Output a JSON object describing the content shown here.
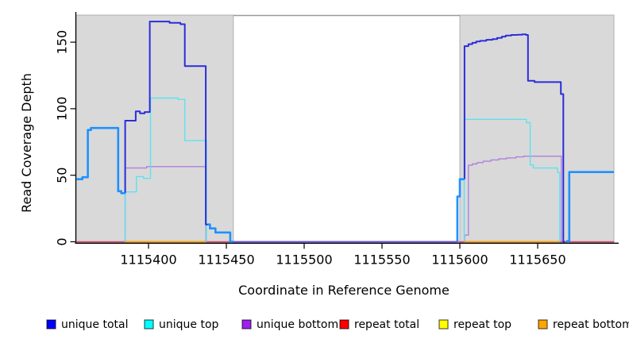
{
  "figure": {
    "background": "#ffffff",
    "plot_background_shaded": "#d9d9d9",
    "shaded_border": "#b0b0b0",
    "gap_top_line": "#9a9a9a",
    "axis_color": "#000000"
  },
  "x_axis": {
    "title": "Coordinate in Reference Genome",
    "ticks": [
      1115400,
      1115450,
      1115500,
      1115550,
      1115600,
      1115650
    ]
  },
  "y_axis": {
    "title": "Read Coverage Depth",
    "ticks": [
      0,
      50,
      100,
      150
    ]
  },
  "legend": [
    {
      "label": "unique total",
      "color": "#0000ff"
    },
    {
      "label": "unique top",
      "color": "#00ffff"
    },
    {
      "label": "unique bottom",
      "color": "#a020f0"
    },
    {
      "label": "repeat total",
      "color": "#ff0000"
    },
    {
      "label": "repeat top",
      "color": "#ffff00"
    },
    {
      "label": "repeat bottom",
      "color": "#ffa500"
    }
  ],
  "chart_data": {
    "type": "line",
    "subtype": "step-coverage",
    "xlabel": "Coordinate in Reference Genome",
    "ylabel": "Read Coverage Depth",
    "xlim": [
      1115353.5,
      1115701
    ],
    "ylim": [
      0,
      172
    ],
    "grid": false,
    "legend_position": "bottom",
    "shaded_regions": [
      {
        "name": "left-covered-region",
        "x0": 1115353.5,
        "x1": 1115454.5
      },
      {
        "name": "right-covered-region",
        "x0": 1115600.0,
        "x1": 1115699.0
      }
    ],
    "series": [
      {
        "name": "repeat-total-zero-line",
        "legend": "repeat total",
        "color": "#de4a6e",
        "width": 1.6,
        "points": [
          [
            1115353.5,
            0
          ],
          [
            1115699,
            0
          ]
        ]
      },
      {
        "name": "repeat-bottom-left",
        "legend": "repeat bottom",
        "color": "#ffa500",
        "width": 1.8,
        "points": [
          [
            1115385,
            0
          ],
          [
            1115437,
            0
          ]
        ]
      },
      {
        "name": "repeat-bottom-right",
        "legend": "repeat bottom",
        "color": "#ffa500",
        "width": 1.8,
        "points": [
          [
            1115603,
            0
          ],
          [
            1115664.3,
            0
          ]
        ]
      },
      {
        "name": "unique-total-zero-gap",
        "legend": "unique total",
        "color": "#6254e2",
        "width": 1.8,
        "points": [
          [
            1115454,
            0
          ],
          [
            1115598.4,
            0
          ]
        ]
      },
      {
        "name": "unique-bottom-left",
        "legend": "unique bottom",
        "color": "#b27fdc",
        "width": 1.4,
        "points": [
          [
            1115385,
            0
          ],
          [
            1115385,
            55.4
          ],
          [
            1115398.8,
            56.5
          ],
          [
            1115436.9,
            56.5
          ],
          [
            1115436.9,
            0
          ]
        ]
      },
      {
        "name": "unique-bottom-right",
        "legend": "unique bottom",
        "color": "#b27fdc",
        "width": 1.4,
        "points": [
          [
            1115602.8,
            0
          ],
          [
            1115603,
            5
          ],
          [
            1115605.5,
            57.5
          ],
          [
            1115608,
            58.5
          ],
          [
            1115611,
            59.5
          ],
          [
            1115615,
            60.5
          ],
          [
            1115620,
            61.5
          ],
          [
            1115625,
            62.3
          ],
          [
            1115630,
            63
          ],
          [
            1115636,
            63.8
          ],
          [
            1115641,
            64.3
          ],
          [
            1115665.2,
            64.3
          ],
          [
            1115665.2,
            0
          ]
        ]
      },
      {
        "name": "unique-top-left",
        "legend": "unique top",
        "color": "#5ce2ee",
        "width": 1.4,
        "points": [
          [
            1115385,
            0
          ],
          [
            1115385,
            37.5
          ],
          [
            1115392.2,
            49
          ],
          [
            1115396.8,
            47.6
          ],
          [
            1115401.3,
            108
          ],
          [
            1115419,
            107
          ],
          [
            1115423.3,
            76
          ],
          [
            1115437.2,
            76
          ],
          [
            1115437.2,
            0
          ]
        ]
      },
      {
        "name": "unique-top-right",
        "legend": "unique top",
        "color": "#5ce2ee",
        "width": 1.4,
        "points": [
          [
            1115602.8,
            0
          ],
          [
            1115602.8,
            92
          ],
          [
            1115642.7,
            89.5
          ],
          [
            1115645.2,
            57.7
          ],
          [
            1115647.2,
            55.4
          ],
          [
            1115662.8,
            52
          ],
          [
            1115664.2,
            52
          ],
          [
            1115664.2,
            0
          ]
        ]
      },
      {
        "name": "unique-total-dark-left",
        "legend": "unique total",
        "color": "#2c2cdc",
        "width": 2,
        "points": [
          [
            1115385,
            36.5
          ],
          [
            1115385,
            91
          ],
          [
            1115391.8,
            98
          ],
          [
            1115394.5,
            96.5
          ],
          [
            1115397.5,
            97.5
          ],
          [
            1115400.8,
            165.5
          ],
          [
            1115413.5,
            164.5
          ],
          [
            1115420.5,
            163.5
          ],
          [
            1115423.3,
            132
          ],
          [
            1115436.8,
            132
          ],
          [
            1115436.8,
            13
          ],
          [
            1115438,
            13
          ]
        ]
      },
      {
        "name": "unique-total-dark-right",
        "legend": "unique total",
        "color": "#2c2cdc",
        "width": 2,
        "points": [
          [
            1115603,
            47
          ],
          [
            1115603,
            147
          ],
          [
            1115605.5,
            148.5
          ],
          [
            1115608,
            149.5
          ],
          [
            1115610.5,
            150.5
          ],
          [
            1115613,
            151
          ],
          [
            1115617,
            151.8
          ],
          [
            1115621,
            152.3
          ],
          [
            1115624,
            153.2
          ],
          [
            1115627,
            154.2
          ],
          [
            1115629.5,
            155
          ],
          [
            1115633,
            155.4
          ],
          [
            1115637,
            155.6
          ],
          [
            1115640,
            155.9
          ],
          [
            1115642.5,
            155.4
          ],
          [
            1115643.8,
            121
          ],
          [
            1115648,
            120
          ],
          [
            1115664.9,
            120
          ],
          [
            1115664.9,
            111
          ],
          [
            1115666.5,
            111
          ],
          [
            1115666.5,
            0
          ],
          [
            1115667.5,
            0
          ]
        ]
      },
      {
        "name": "unique-total-light-left",
        "legend": "unique total",
        "color": "#1e90ff",
        "width": 2.6,
        "points": [
          [
            1115353.5,
            47
          ],
          [
            1115357.5,
            48.5
          ],
          [
            1115361,
            84
          ],
          [
            1115363,
            85.5
          ],
          [
            1115380.5,
            85.5
          ],
          [
            1115380.5,
            38
          ],
          [
            1115382.5,
            36.5
          ],
          [
            1115385,
            36.5
          ]
        ]
      },
      {
        "name": "unique-total-light-tail",
        "legend": "unique total",
        "color": "#1e90ff",
        "width": 2.6,
        "points": [
          [
            1115438,
            13
          ],
          [
            1115439.5,
            10
          ],
          [
            1115443,
            7
          ],
          [
            1115452.5,
            7
          ],
          [
            1115452.5,
            0
          ],
          [
            1115454.5,
            0
          ]
        ]
      },
      {
        "name": "unique-total-light-step",
        "legend": "unique total",
        "color": "#1e90ff",
        "width": 2.6,
        "points": [
          [
            1115598.4,
            0
          ],
          [
            1115598.4,
            34
          ],
          [
            1115600,
            47
          ],
          [
            1115603,
            47
          ]
        ]
      },
      {
        "name": "unique-total-light-right",
        "legend": "unique total",
        "color": "#1e90ff",
        "width": 2.6,
        "points": [
          [
            1115668.8,
            0
          ],
          [
            1115668.8,
            0.5
          ],
          [
            1115670.3,
            52.4
          ],
          [
            1115699,
            52.4
          ]
        ]
      }
    ]
  }
}
